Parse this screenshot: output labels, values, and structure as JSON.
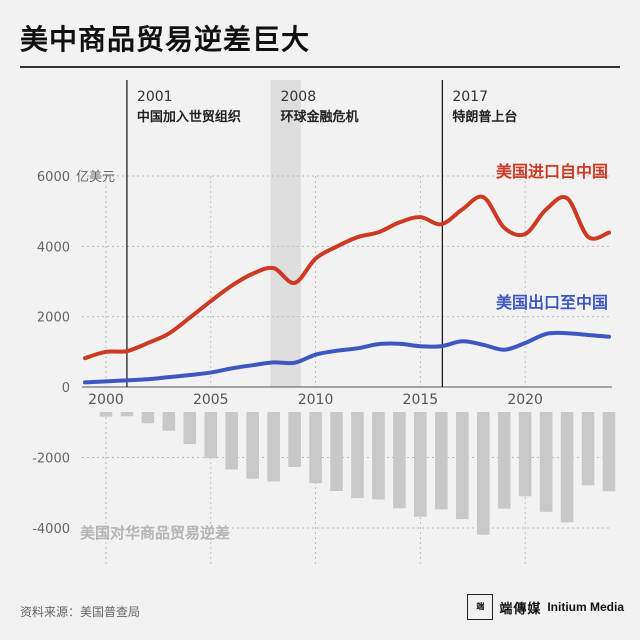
{
  "title": "美中商品贸易逆差巨大",
  "source": "资料来源：美国普查局",
  "brand": {
    "cn": "端傳媒",
    "en": "Initium Media"
  },
  "chart_data": {
    "type": "line",
    "title": "美中商品贸易逆差巨大",
    "unit": "亿美元",
    "x": [
      1999,
      2000,
      2001,
      2002,
      2003,
      2004,
      2005,
      2006,
      2007,
      2008,
      2009,
      2010,
      2011,
      2012,
      2013,
      2014,
      2015,
      2016,
      2017,
      2018,
      2019,
      2020,
      2021,
      2022,
      2023,
      2024
    ],
    "xticks": [
      2000,
      2005,
      2010,
      2015,
      2020
    ],
    "ylim": [
      -4500,
      6000
    ],
    "yticks": [
      {
        "value": 6000,
        "label": "6000"
      },
      {
        "value": 4000,
        "label": "4000"
      },
      {
        "value": 2000,
        "label": "2000"
      },
      {
        "value": 0,
        "label": "0"
      },
      {
        "value": -2000,
        "label": "-2000"
      },
      {
        "value": -4000,
        "label": "-4000"
      }
    ],
    "series": [
      {
        "name": "美国进口自中国",
        "type": "line",
        "color": "#cc3a24",
        "values": [
          820,
          1000,
          1020,
          1250,
          1520,
          1970,
          2440,
          2880,
          3220,
          3380,
          2960,
          3650,
          3990,
          4260,
          4400,
          4680,
          4830,
          4630,
          5050,
          5400,
          4530,
          4350,
          5050,
          5370,
          4270,
          4390
        ]
      },
      {
        "name": "美国出口至中国",
        "type": "line",
        "color": "#3d57c2",
        "values": [
          130,
          160,
          190,
          220,
          280,
          340,
          410,
          530,
          620,
          700,
          690,
          920,
          1030,
          1100,
          1220,
          1230,
          1160,
          1160,
          1300,
          1200,
          1060,
          1250,
          1510,
          1530,
          1480,
          1430
        ]
      },
      {
        "name": "美国对华商品贸易逆差",
        "type": "bar",
        "color": "#c8c8c8",
        "values": [
          -690,
          -840,
          -830,
          -1030,
          -1240,
          -1620,
          -2020,
          -2340,
          -2600,
          -2680,
          -2270,
          -2730,
          -2950,
          -3150,
          -3190,
          -3440,
          -3680,
          -3470,
          -3750,
          -4190,
          -3450,
          -3100,
          -3540,
          -3840,
          -2790,
          -2960
        ]
      }
    ],
    "events": [
      {
        "year": "2001",
        "label": "中国加入世贸组织"
      },
      {
        "year": "2008",
        "label": "环球金融危机"
      },
      {
        "year": "2017",
        "label": "特朗普上台"
      }
    ],
    "grid": true
  }
}
